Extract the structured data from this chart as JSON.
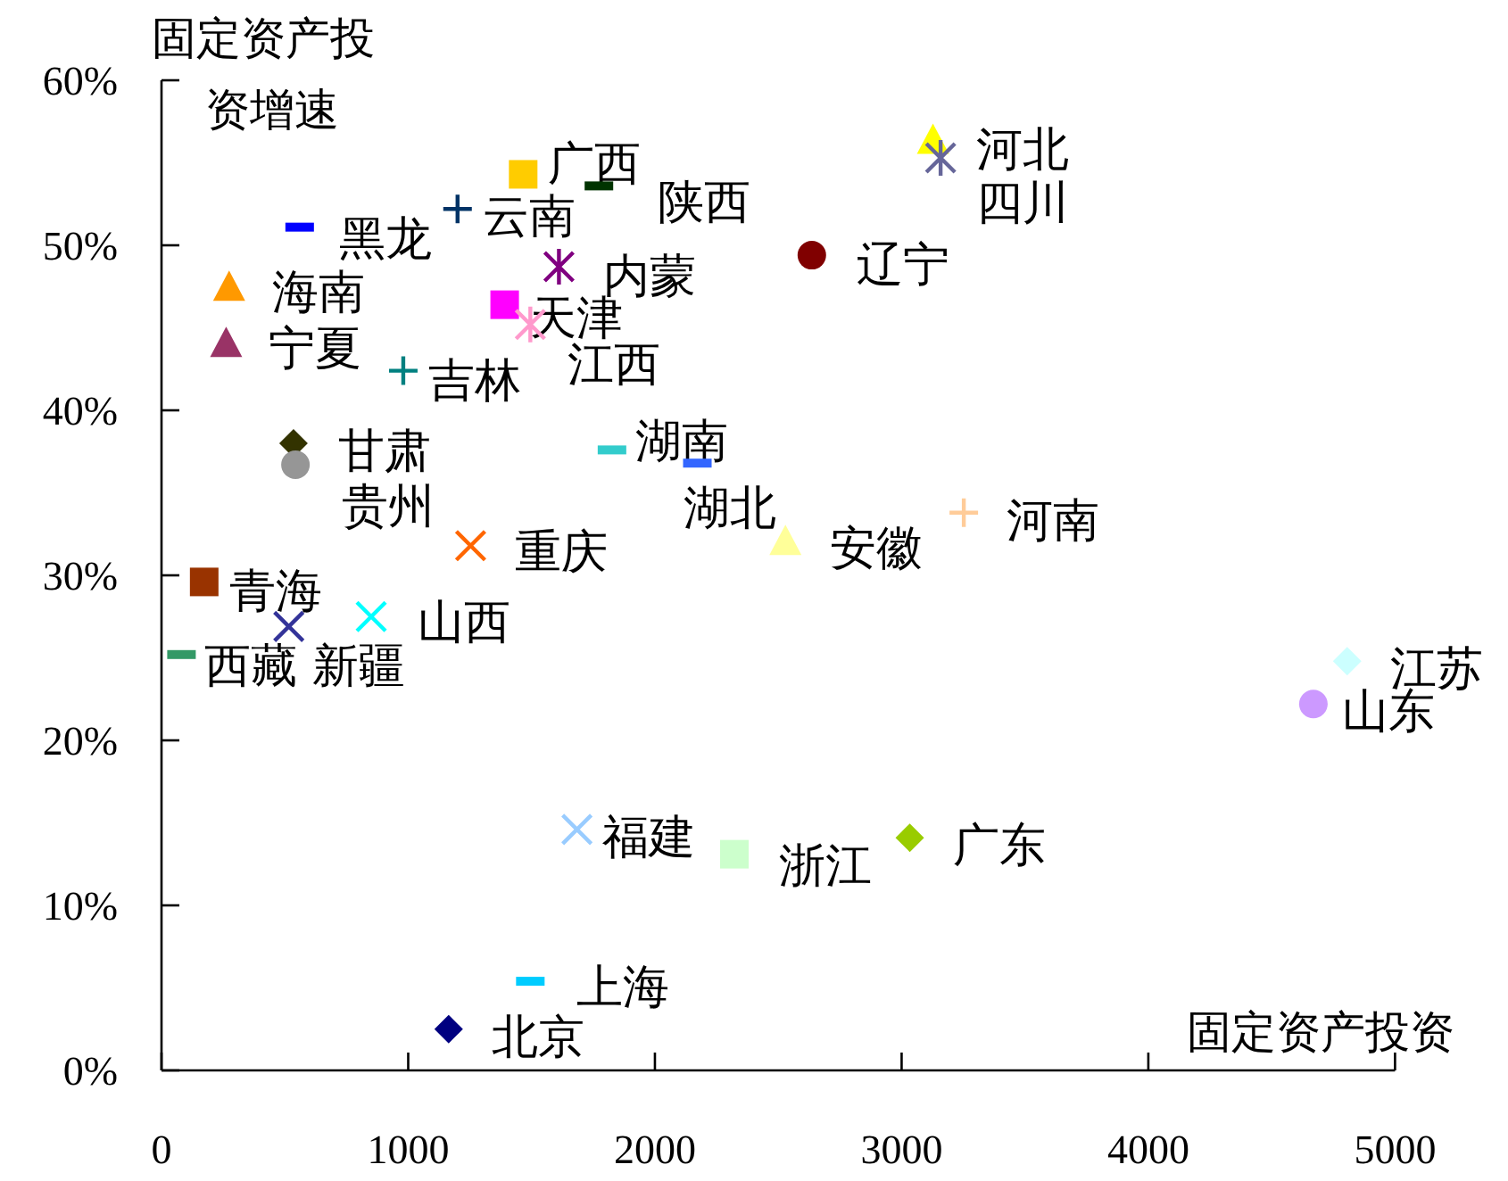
{
  "chart_data": {
    "type": "scatter",
    "xlabel": "固定资产投资",
    "ylabel": "固定资产投资增速",
    "xlim": [
      0,
      5000
    ],
    "ylim": [
      0,
      60
    ],
    "xticks": [
      0,
      1000,
      2000,
      3000,
      4000,
      5000
    ],
    "yticks": [
      {
        "value": 0,
        "label": "0%"
      },
      {
        "value": 10,
        "label": "10%"
      },
      {
        "value": 20,
        "label": "20%"
      },
      {
        "value": 30,
        "label": "30%"
      },
      {
        "value": 40,
        "label": "40%"
      },
      {
        "value": 50,
        "label": "50%"
      },
      {
        "value": 60,
        "label": "60%"
      }
    ],
    "series": [
      {
        "name": "黑龙",
        "color": "#0000ff",
        "x": [
          560
        ],
        "values": [
          51.1
        ]
      },
      {
        "name": "云南",
        "color": "#003366",
        "marker": "plus",
        "x": [
          1200
        ],
        "values": [
          52.2
        ]
      },
      {
        "name": "广西",
        "color": "#ffcc00",
        "marker": "square",
        "x": [
          1466
        ],
        "values": [
          54.3
        ]
      },
      {
        "name": "陕西",
        "color": "#003300",
        "x": [
          1773
        ],
        "values": [
          53.6
        ]
      },
      {
        "name": "内蒙",
        "color": "#800080",
        "marker": "cross",
        "x": [
          1611
        ],
        "values": [
          48.7
        ]
      },
      {
        "name": "海南",
        "color": "#ff9900",
        "marker": "triangle",
        "x": [
          274
        ],
        "values": [
          47.5
        ]
      },
      {
        "name": "天津",
        "color": "#ff00ff",
        "marker": "square",
        "x": [
          1391
        ],
        "values": [
          46.4
        ]
      },
      {
        "name": "江西",
        "color": "#ff99cc",
        "marker": "cross",
        "x": [
          1495
        ],
        "values": [
          45.2
        ]
      },
      {
        "name": "宁夏",
        "color": "#993366",
        "marker": "triangle",
        "x": [
          262
        ],
        "values": [
          44.1
        ]
      },
      {
        "name": "吉林",
        "color": "#008080",
        "marker": "plus",
        "x": [
          980
        ],
        "values": [
          42.4
        ]
      },
      {
        "name": "甘肃",
        "color": "#333300",
        "marker": "diamond",
        "x": [
          535
        ],
        "values": [
          38.0
        ]
      },
      {
        "name": "贵州",
        "color": "#969696",
        "marker": "circle",
        "x": [
          543
        ],
        "values": [
          36.7
        ]
      },
      {
        "name": "湖南",
        "color": "#33cccc",
        "x": [
          1826
        ],
        "values": [
          37.6
        ]
      },
      {
        "name": "湖北",
        "color": "#3366ff",
        "x": [
          2172
        ],
        "values": [
          36.8
        ]
      },
      {
        "name": "安徽",
        "color": "#ffff99",
        "marker": "triangle",
        "x": [
          2529
        ],
        "values": [
          32.1
        ]
      },
      {
        "name": "重庆",
        "color": "#ff6600",
        "marker": "x",
        "x": [
          1253
        ],
        "values": [
          31.8
        ]
      },
      {
        "name": "青海",
        "color": "#993300",
        "marker": "square",
        "x": [
          173
        ],
        "values": [
          29.6
        ]
      },
      {
        "name": "新疆",
        "color": "#333399",
        "marker": "x",
        "x": [
          516
        ],
        "values": [
          26.9
        ]
      },
      {
        "name": "西藏",
        "color": "#339966",
        "x": [
          81
        ],
        "values": [
          25.2
        ]
      },
      {
        "name": "山西",
        "color": "#00ffff",
        "marker": "x",
        "x": [
          850
        ],
        "values": [
          27.5
        ]
      },
      {
        "name": "福建",
        "color": "#99ccff",
        "marker": "x",
        "x": [
          1684
        ],
        "values": [
          14.6
        ]
      },
      {
        "name": "浙江",
        "color": "#ccffcc",
        "marker": "square",
        "x": [
          2322
        ],
        "values": [
          13.1
        ]
      },
      {
        "name": "上海",
        "color": "#00ccff",
        "x": [
          1495
        ],
        "values": [
          5.4
        ]
      },
      {
        "name": "北京",
        "color": "#000080",
        "marker": "diamond",
        "x": [
          1164
        ],
        "values": [
          2.5
        ]
      },
      {
        "name": "河北",
        "color": "#ffff00",
        "marker": "triangle",
        "x": [
          3127
        ],
        "values": [
          56.4
        ]
      },
      {
        "name": "四川",
        "color": "#666699",
        "marker": "cross",
        "x": [
          3158
        ],
        "values": [
          55.3
        ]
      },
      {
        "name": "辽宁",
        "color": "#800000",
        "marker": "circle",
        "x": [
          2636
        ],
        "values": [
          49.4
        ]
      },
      {
        "name": "河南",
        "color": "#ffcc99",
        "marker": "plus",
        "x": [
          3252
        ],
        "values": [
          33.8
        ]
      },
      {
        "name": "广东",
        "color": "#99cc00",
        "marker": "diamond",
        "x": [
          3033
        ],
        "values": [
          14.1
        ]
      },
      {
        "name": "江苏",
        "color": "#ccffff",
        "marker": "diamond",
        "x": [
          4806
        ],
        "values": [
          24.8
        ]
      },
      {
        "name": "山东",
        "color": "#cc99ff",
        "marker": "circle",
        "x": [
          4669
        ],
        "values": [
          22.2
        ]
      }
    ]
  }
}
